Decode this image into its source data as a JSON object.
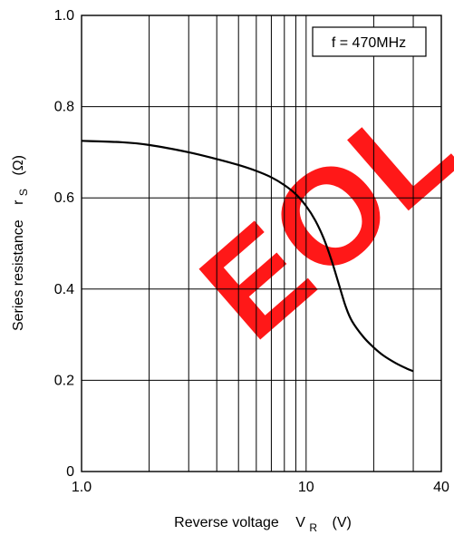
{
  "chart_data": {
    "type": "line",
    "title": "",
    "xlabel": {
      "main": "Reverse voltage",
      "sym": "V",
      "sub": "R",
      "unit": "(V)"
    },
    "ylabel": {
      "main": "Series resistance",
      "sym": "r",
      "sub": "S",
      "unit": "(Ω)"
    },
    "x_scale": "log",
    "xlim": [
      1,
      40
    ],
    "ylim": [
      0,
      1.0
    ],
    "x_ticks": [
      {
        "value": 1,
        "label": "1.0"
      },
      {
        "value": 10,
        "label": "10"
      },
      {
        "value": 40,
        "label": "40"
      }
    ],
    "y_ticks": [
      {
        "value": 0,
        "label": "0"
      },
      {
        "value": 0.2,
        "label": "0.2"
      },
      {
        "value": 0.4,
        "label": "0.4"
      },
      {
        "value": 0.6,
        "label": "0.6"
      },
      {
        "value": 0.8,
        "label": "0.8"
      },
      {
        "value": 1.0,
        "label": "1.0"
      }
    ],
    "x_grid": [
      2,
      3,
      4,
      5,
      6,
      7,
      8,
      9,
      10,
      20,
      30
    ],
    "y_grid": [
      0.2,
      0.4,
      0.6,
      0.8
    ],
    "grid": true,
    "annotation": "f = 470MHz",
    "annotation_position": "top-right",
    "series": [
      {
        "x": [
          1.0,
          1.5,
          2.0,
          3.0,
          4.0,
          5.0,
          6.0,
          7.0,
          8.0,
          9.0,
          10.0,
          11.0,
          12.0,
          13.0,
          14.0,
          15.0,
          16.0,
          18.0,
          20.0,
          22.0,
          25.0,
          28.0,
          30.0
        ],
        "y": [
          0.725,
          0.722,
          0.716,
          0.7,
          0.685,
          0.672,
          0.659,
          0.645,
          0.628,
          0.608,
          0.582,
          0.55,
          0.51,
          0.462,
          0.41,
          0.362,
          0.33,
          0.295,
          0.272,
          0.255,
          0.238,
          0.226,
          0.22
        ]
      }
    ]
  },
  "watermark": {
    "text": "EOL",
    "color": "#ff0000"
  }
}
